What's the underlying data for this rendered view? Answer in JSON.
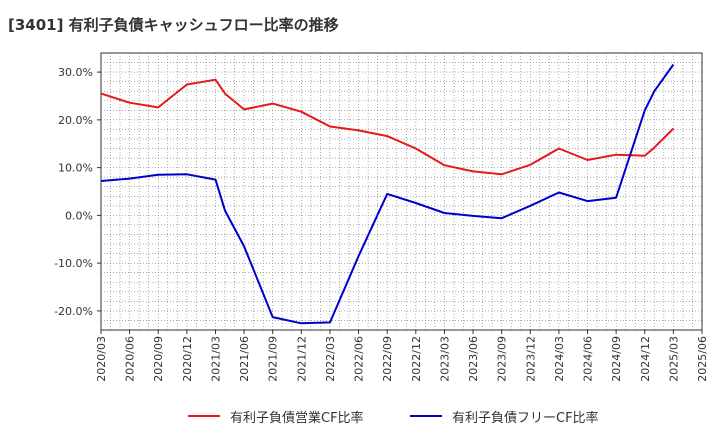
{
  "chart_data": {
    "type": "line",
    "title": "[3401]  有利子負債キャッシュフロー比率の推移",
    "xlabel": "",
    "ylabel": "",
    "ylim": [
      -24,
      34
    ],
    "y_ticks": [
      -20,
      -10,
      0,
      10,
      20,
      30
    ],
    "y_tick_labels": [
      "-20.0%",
      "-10.0%",
      "0.0%",
      "10.0%",
      "20.0%",
      "30.0%"
    ],
    "x_tick_labels": [
      "2020/03",
      "2020/06",
      "2020/09",
      "2020/12",
      "2021/03",
      "2021/06",
      "2021/09",
      "2021/12",
      "2022/03",
      "2022/06",
      "2022/09",
      "2022/12",
      "2023/03",
      "2023/06",
      "2023/09",
      "2023/12",
      "2024/03",
      "2024/06",
      "2024/09",
      "2024/12",
      "2025/03",
      "2025/06"
    ],
    "grid": true,
    "legend_position": "bottom",
    "series": [
      {
        "name": "有利子負債営業CF比率",
        "color": "#e41a1c",
        "x": [
          "2020/03",
          "2020/06",
          "2020/09",
          "2020/12",
          "2021/03",
          "2021/04",
          "2021/06",
          "2021/09",
          "2021/12",
          "2022/03",
          "2022/06",
          "2022/09",
          "2022/12",
          "2023/03",
          "2023/06",
          "2023/09",
          "2023/12",
          "2024/03",
          "2024/06",
          "2024/09",
          "2024/12",
          "2025/01",
          "2025/03"
        ],
        "values": [
          25.5,
          23.6,
          22.6,
          27.4,
          28.4,
          25.5,
          22.2,
          23.4,
          21.7,
          18.6,
          17.8,
          16.6,
          14.0,
          10.5,
          9.2,
          8.6,
          10.6,
          14.0,
          11.6,
          12.7,
          12.5,
          14.2,
          18.2
        ]
      },
      {
        "name": "有利子負債フリーCF比率",
        "color": "#0000cc",
        "x": [
          "2020/03",
          "2020/06",
          "2020/09",
          "2020/12",
          "2021/03",
          "2021/04",
          "2021/06",
          "2021/09",
          "2021/12",
          "2022/03",
          "2022/06",
          "2022/09",
          "2022/12",
          "2023/03",
          "2023/06",
          "2023/09",
          "2023/12",
          "2024/03",
          "2024/06",
          "2024/09",
          "2024/12",
          "2025/01",
          "2025/03"
        ],
        "values": [
          7.2,
          7.7,
          8.5,
          8.6,
          7.5,
          1.0,
          -6.5,
          -21.3,
          -22.6,
          -22.4,
          -8.5,
          4.5,
          2.6,
          0.5,
          -0.1,
          -0.6,
          2.0,
          4.8,
          3.0,
          3.7,
          22.0,
          26.0,
          31.6
        ]
      }
    ]
  }
}
